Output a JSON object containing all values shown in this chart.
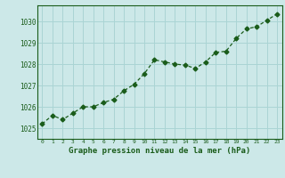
{
  "x": [
    0,
    1,
    2,
    3,
    4,
    5,
    6,
    7,
    8,
    9,
    10,
    11,
    12,
    13,
    14,
    15,
    16,
    17,
    18,
    19,
    20,
    21,
    22,
    23
  ],
  "y": [
    1025.2,
    1025.6,
    1025.4,
    1025.7,
    1026.0,
    1026.0,
    1026.2,
    1026.35,
    1026.75,
    1027.05,
    1027.55,
    1028.2,
    1028.1,
    1028.0,
    1027.95,
    1027.8,
    1028.1,
    1028.55,
    1028.6,
    1029.2,
    1029.65,
    1029.75,
    1030.05,
    1030.35
  ],
  "line_color": "#1a5c1a",
  "marker": "D",
  "marker_size": 2.5,
  "bg_color": "#cce8e8",
  "grid_color": "#aad4d4",
  "xlabel": "Graphe pression niveau de la mer (hPa)",
  "xlabel_color": "#1a5c1a",
  "tick_color": "#1a5c1a",
  "ylim": [
    1024.5,
    1030.75
  ],
  "xlim": [
    -0.5,
    23.5
  ],
  "yticks": [
    1025,
    1026,
    1027,
    1028,
    1029,
    1030
  ],
  "xticks": [
    0,
    1,
    2,
    3,
    4,
    5,
    6,
    7,
    8,
    9,
    10,
    11,
    12,
    13,
    14,
    15,
    16,
    17,
    18,
    19,
    20,
    21,
    22,
    23
  ]
}
